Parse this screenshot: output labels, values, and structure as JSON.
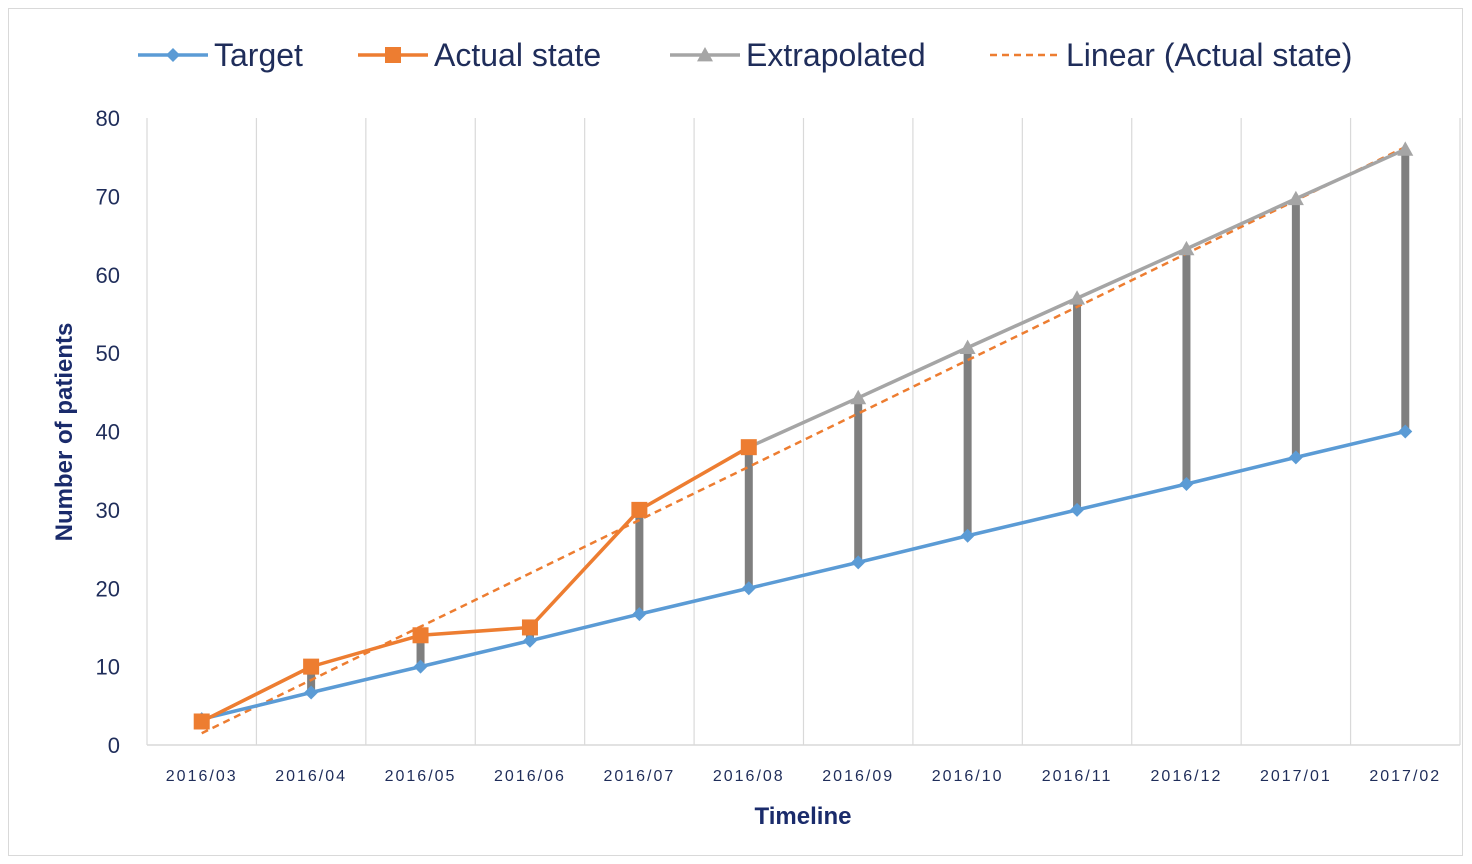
{
  "chart_data": {
    "type": "line",
    "title": "",
    "xlabel": "Timeline",
    "ylabel": "Number of patients",
    "ylim": [
      0,
      80
    ],
    "yticks": [
      0,
      10,
      20,
      30,
      40,
      50,
      60,
      70,
      80
    ],
    "grid": "vertical",
    "legend_position": "top",
    "categories": [
      "2016/03",
      "2016/04",
      "2016/05",
      "2016/06",
      "2016/07",
      "2016/08",
      "2016/09",
      "2016/10",
      "2016/11",
      "2016/12",
      "2017/01",
      "2017/02"
    ],
    "series": [
      {
        "name": "Target",
        "color": "#5b9bd5",
        "marker": "diamond",
        "style": "solid",
        "values": [
          3.3,
          6.7,
          10,
          13.3,
          16.7,
          20,
          23.3,
          26.7,
          30,
          33.3,
          36.7,
          40
        ]
      },
      {
        "name": "Actual state",
        "color": "#ed7d31",
        "marker": "square",
        "style": "solid",
        "values": [
          3,
          10,
          14,
          15,
          30,
          38,
          null,
          null,
          null,
          null,
          null,
          null
        ]
      },
      {
        "name": "Extrapolated",
        "color": "#a5a5a5",
        "marker": "triangle",
        "style": "solid",
        "values": [
          null,
          null,
          null,
          null,
          null,
          38,
          44.3,
          50.7,
          57,
          63.3,
          69.7,
          76
        ]
      },
      {
        "name": "Linear (Actual state)",
        "color": "#ed7d31",
        "marker": "none",
        "style": "dashed",
        "values": [
          1.5,
          8.3,
          15.1,
          21.9,
          28.7,
          35.5,
          42.3,
          49.1,
          55.9,
          62.7,
          69.5,
          76.3
        ]
      }
    ],
    "gap_bars": {
      "color": "#7f7f7f",
      "from_series": "Target",
      "to_series": [
        "Actual state",
        "Extrapolated"
      ]
    }
  }
}
